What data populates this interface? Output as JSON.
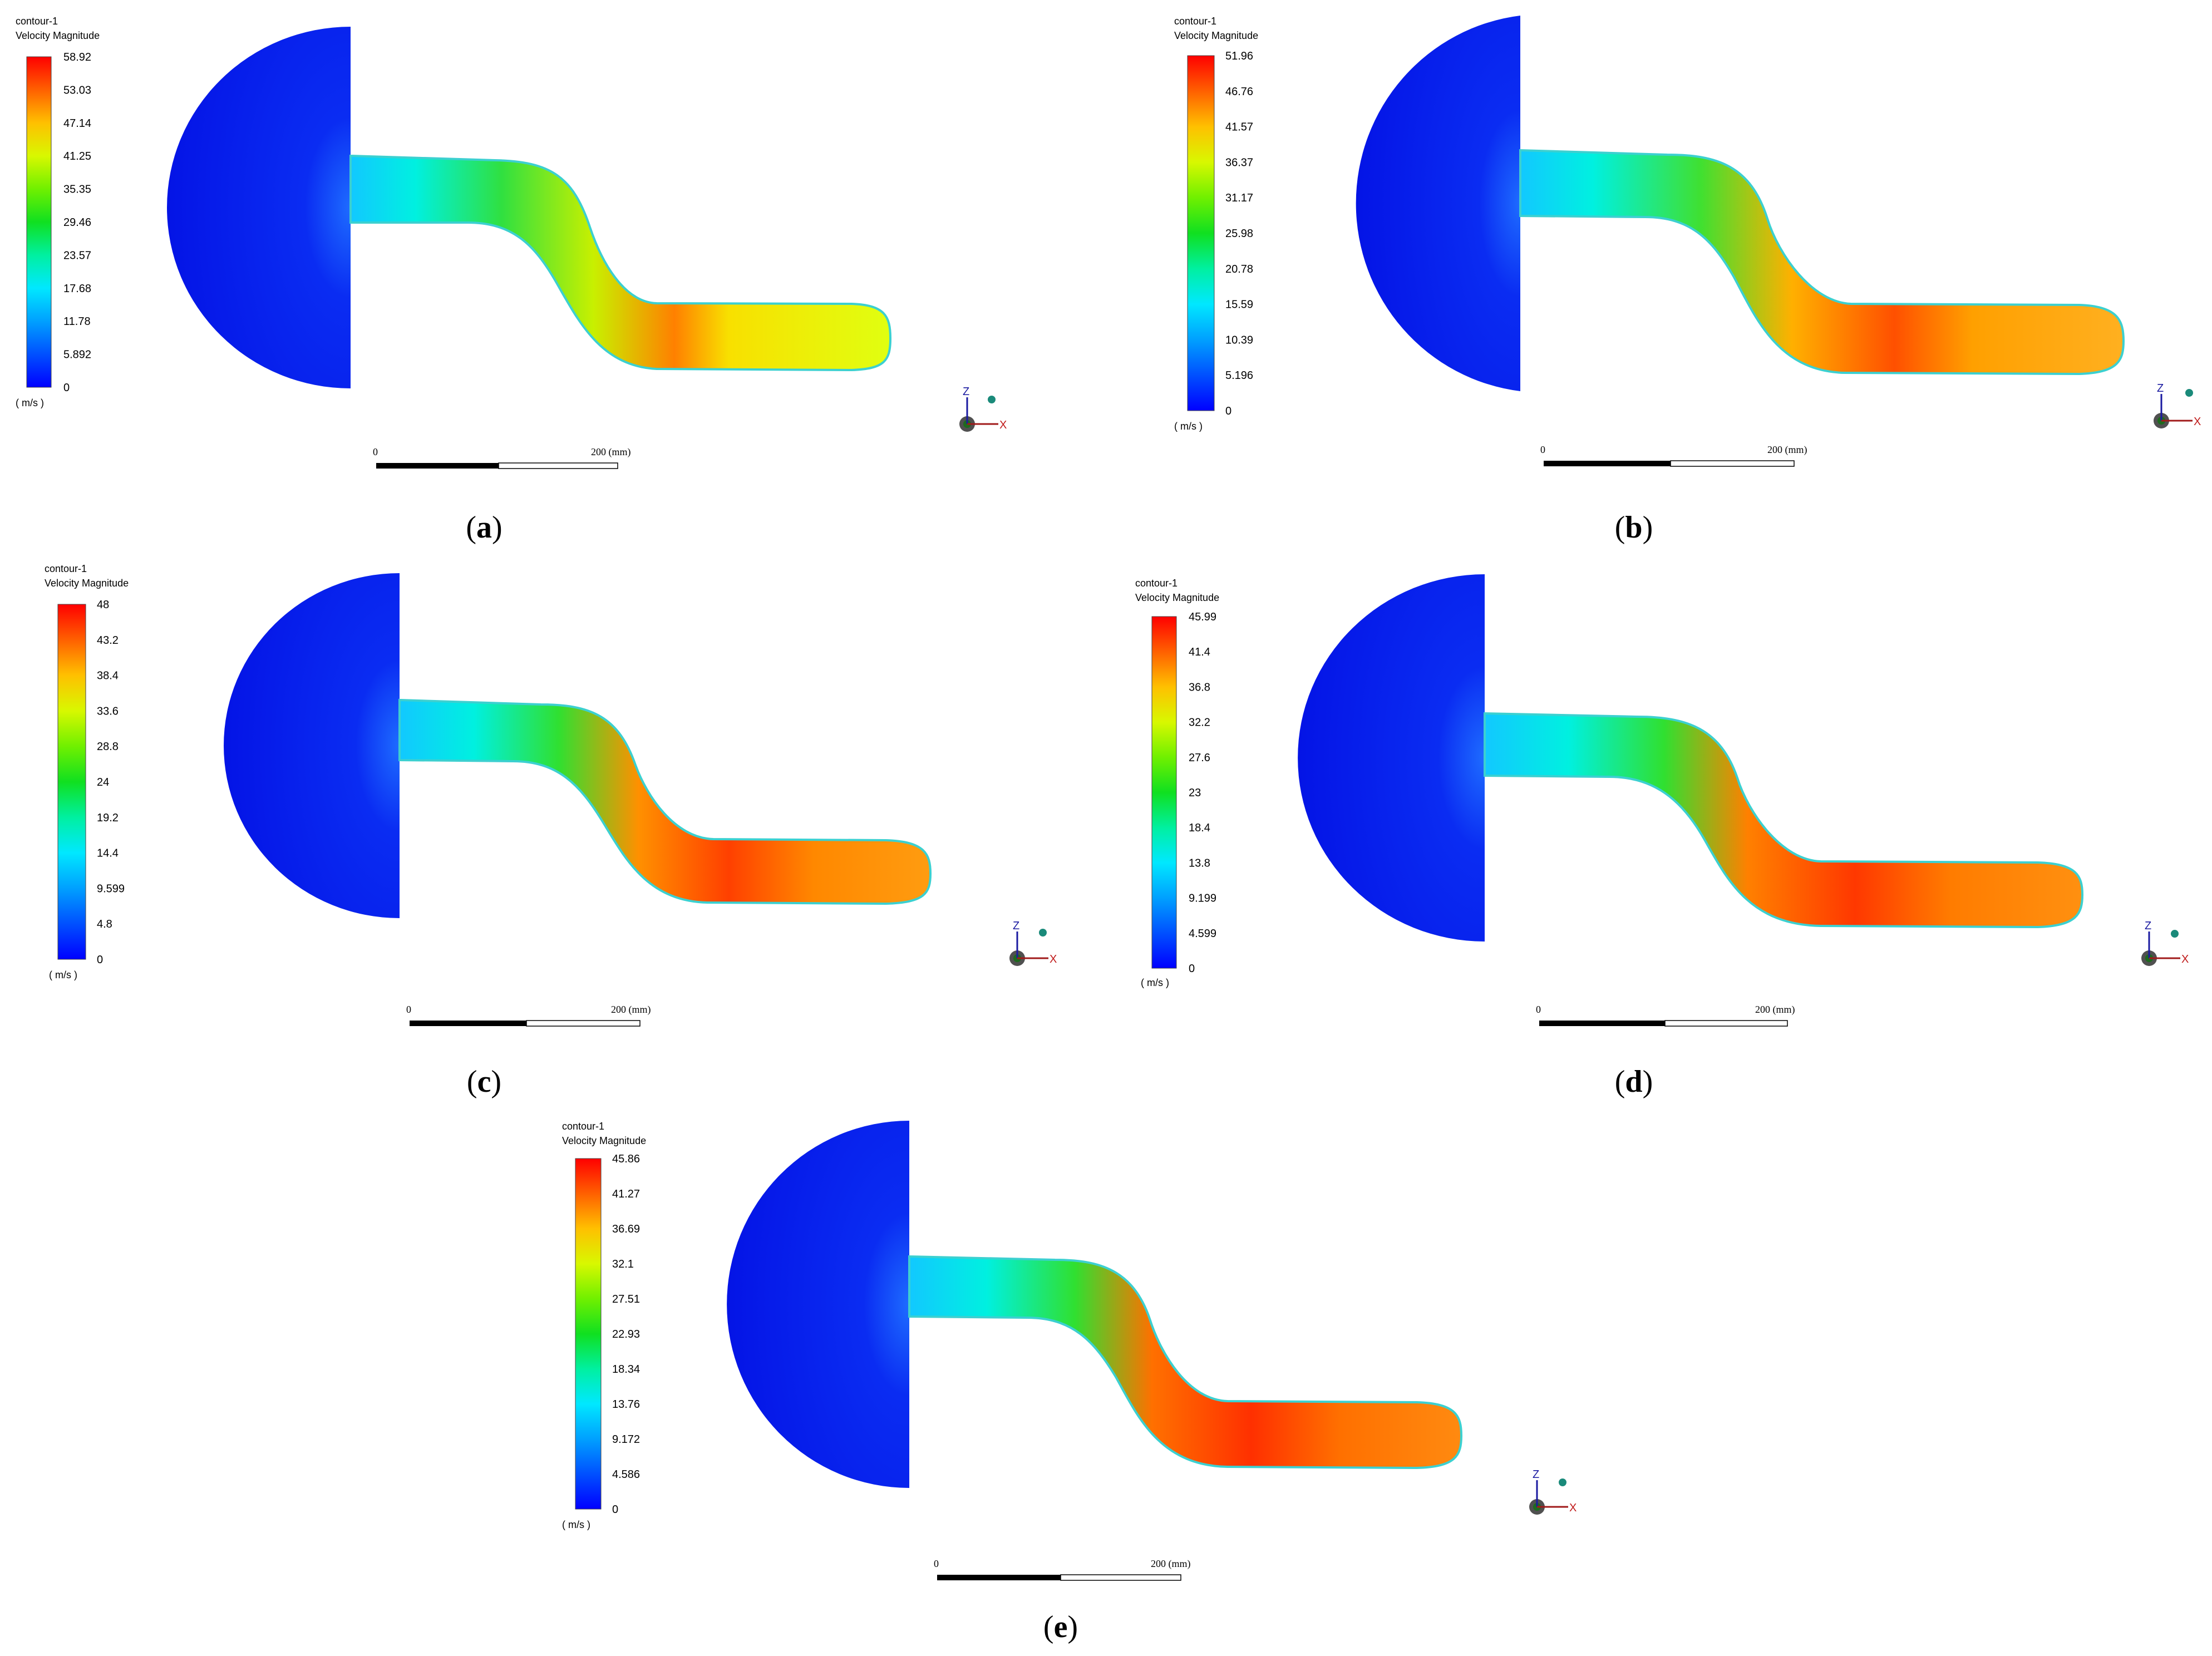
{
  "panels": [
    {
      "id": "a",
      "caption": "a",
      "contour_name": "contour-1",
      "variable": "Velocity Magnitude",
      "unit": "( m/s )",
      "legend_ticks": [
        "58.92",
        "53.03",
        "47.14",
        "41.25",
        "35.35",
        "29.46",
        "23.57",
        "17.68",
        "11.78",
        "5.892",
        "0"
      ],
      "scale_labels": [
        "0",
        "200 (mm)"
      ],
      "axis_labels": [
        "Z",
        "X"
      ],
      "flow_peak_fraction": 0.88
    },
    {
      "id": "b",
      "caption": "b",
      "contour_name": "contour-1",
      "variable": "Velocity Magnitude",
      "unit": "( m/s )",
      "legend_ticks": [
        "51.96",
        "46.76",
        "41.57",
        "36.37",
        "31.17",
        "25.98",
        "20.78",
        "15.59",
        "10.39",
        "5.196",
        "0"
      ],
      "scale_labels": [
        "0",
        "200 (mm)"
      ],
      "axis_labels": [
        "Z",
        "X"
      ],
      "flow_peak_fraction": 0.93
    },
    {
      "id": "c",
      "caption": "c",
      "contour_name": "contour-1",
      "variable": "Velocity Magnitude",
      "unit": "( m/s )",
      "legend_ticks": [
        "48",
        "43.2",
        "38.4",
        "33.6",
        "28.8",
        "24",
        "19.2",
        "14.4",
        "9.599",
        "4.8",
        "0"
      ],
      "scale_labels": [
        "0",
        "200 (mm)"
      ],
      "axis_labels": [
        "Z",
        "X"
      ],
      "flow_peak_fraction": 0.96
    },
    {
      "id": "d",
      "caption": "d",
      "contour_name": "contour-1",
      "variable": "Velocity Magnitude",
      "unit": "( m/s )",
      "legend_ticks": [
        "45.99",
        "41.4",
        "36.8",
        "32.2",
        "27.6",
        "23",
        "18.4",
        "13.8",
        "9.199",
        "4.599",
        "0"
      ],
      "scale_labels": [
        "0",
        "200 (mm)"
      ],
      "axis_labels": [
        "Z",
        "X"
      ],
      "flow_peak_fraction": 0.97
    },
    {
      "id": "e",
      "caption": "e",
      "contour_name": "contour-1",
      "variable": "Velocity Magnitude",
      "unit": "( m/s )",
      "legend_ticks": [
        "45.86",
        "41.27",
        "36.69",
        "32.1",
        "27.51",
        "22.93",
        "18.34",
        "13.76",
        "9.172",
        "4.586",
        "0"
      ],
      "scale_labels": [
        "0",
        "200 (mm)"
      ],
      "axis_labels": [
        "Z",
        "X"
      ],
      "flow_peak_fraction": 0.98
    }
  ],
  "colors": {
    "colormap": [
      "#0000ff",
      "#0060ff",
      "#00c0ff",
      "#00ffd0",
      "#00f080",
      "#20e000",
      "#80ff00",
      "#e8ff00",
      "#ffc000",
      "#ff6000",
      "#ff0000"
    ],
    "plenum": "#0818e6",
    "caption_text": "#000000"
  }
}
